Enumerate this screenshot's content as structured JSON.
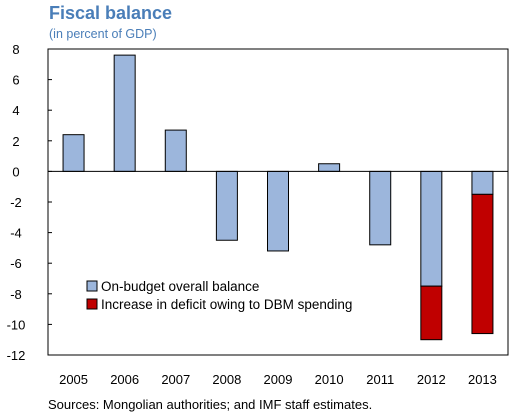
{
  "chart_data": {
    "type": "bar",
    "stacked": true,
    "title": "Fiscal balance",
    "subtitle": "(in percent of GDP)",
    "categories": [
      "2005",
      "2006",
      "2007",
      "2008",
      "2009",
      "2010",
      "2011",
      "2012",
      "2013"
    ],
    "series": [
      {
        "name": "On-budget overall balance",
        "color": "#9cb6dc",
        "values": [
          2.4,
          7.6,
          2.7,
          -4.5,
          -5.2,
          0.5,
          -4.8,
          -7.5,
          -1.5
        ]
      },
      {
        "name": "Increase in deficit owing to DBM spending",
        "color": "#c00000",
        "values": [
          0,
          0,
          0,
          0,
          0,
          0,
          0,
          -3.5,
          -9.1
        ]
      }
    ],
    "ylim": [
      -12,
      8
    ],
    "yticks": [
      8,
      6,
      4,
      2,
      0,
      -2,
      -4,
      -6,
      -8,
      -10,
      -12
    ],
    "legend_position": "bottom-left",
    "source": "Sources: Mongolian authorities; and IMF staff estimates."
  }
}
